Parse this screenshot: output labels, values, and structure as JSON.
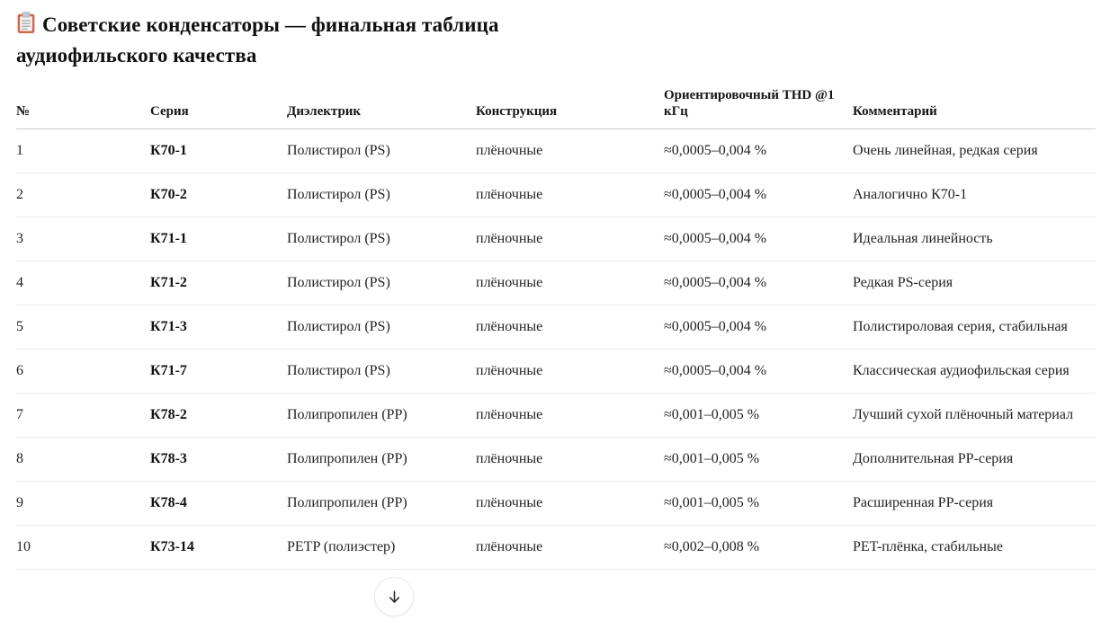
{
  "page": {
    "title_icon": "📋",
    "title": "Советские конденсаторы — финальная таблица аудиофильского качества"
  },
  "table": {
    "columns": [
      "№",
      "Серия",
      "Диэлектрик",
      "Конструкция",
      "Ориентировочный THD @1 кГц",
      "Комментарий"
    ],
    "rows": [
      [
        "1",
        "К70-1",
        "Полистирол (PS)",
        "плёночные",
        "≈0,0005–0,004 %",
        "Очень линейная, редкая серия"
      ],
      [
        "2",
        "К70-2",
        "Полистирол (PS)",
        "плёночные",
        "≈0,0005–0,004 %",
        "Аналогично К70-1"
      ],
      [
        "3",
        "К71-1",
        "Полистирол (PS)",
        "плёночные",
        "≈0,0005–0,004 %",
        "Идеальная линейность"
      ],
      [
        "4",
        "К71-2",
        "Полистирол (PS)",
        "плёночные",
        "≈0,0005–0,004 %",
        "Редкая PS-серия"
      ],
      [
        "5",
        "К71-3",
        "Полистирол (PS)",
        "плёночные",
        "≈0,0005–0,004 %",
        "Полистироловая серия, стабильная"
      ],
      [
        "6",
        "К71-7",
        "Полистирол (PS)",
        "плёночные",
        "≈0,0005–0,004 %",
        "Классическая аудиофильская серия"
      ],
      [
        "7",
        "К78-2",
        "Полипропилен (PP)",
        "плёночные",
        "≈0,001–0,005 %",
        "Лучший сухой плёночный материал"
      ],
      [
        "8",
        "К78-3",
        "Полипропилен (PP)",
        "плёночные",
        "≈0,001–0,005 %",
        "Дополнительная PP-серия"
      ],
      [
        "9",
        "К78-4",
        "Полипропилен (PP)",
        "плёночные",
        "≈0,001–0,005 %",
        "Расширенная PP-серия"
      ],
      [
        "10",
        "К73-14",
        "PETP (полиэстер)",
        "плёночные",
        "≈0,002–0,008 %",
        "PET-плёнка, стабильные"
      ]
    ]
  },
  "icons": {
    "title": "clipboard-icon",
    "scroll": "down-arrow-icon"
  },
  "colors": {
    "text": "#1d1d1d",
    "header_border": "#cccccc",
    "row_border": "#e8e8e8",
    "clipboard_frame": "#cf6a50",
    "clipboard_paper": "#f5f3ee",
    "clipboard_clip": "#c6cace"
  }
}
